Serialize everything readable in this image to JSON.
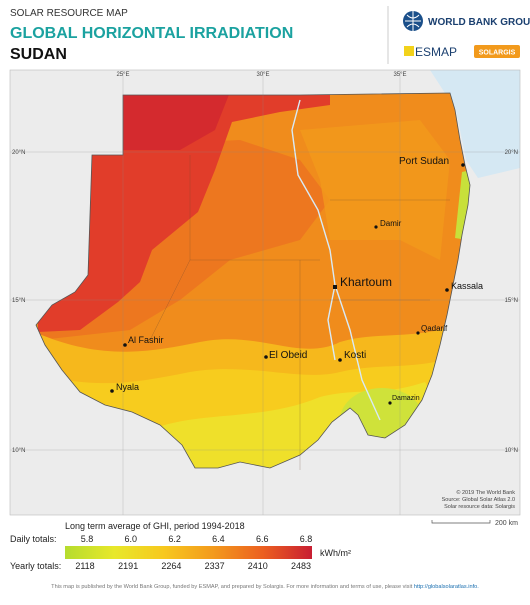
{
  "header": {
    "subtitle": "SOLAR RESOURCE MAP",
    "title": "GLOBAL HORIZONTAL IRRADIATION",
    "country": "SUDAN"
  },
  "logos": {
    "world_bank": "WORLD BANK GROUP",
    "esmap": "ESMAP",
    "solargis": "SOLARGIS"
  },
  "map": {
    "lon_labels": [
      "25°E",
      "30°E",
      "35°E"
    ],
    "lat_labels": [
      "20°N",
      "15°N",
      "10°N"
    ],
    "cities": [
      "Port Sudan",
      "Damir",
      "Khartoum",
      "Kassala",
      "Al Fashir",
      "Qadarif",
      "El Obeid",
      "Kosti",
      "Nyala",
      "Damazin"
    ],
    "credits": [
      "© 2019 The World Bank",
      "Source: Global Solar Atlas 2.0",
      "Solar resource data: Solargis"
    ],
    "scale": "200 km"
  },
  "legend": {
    "title": "Long term average of GHI, period 1994-2018",
    "daily_label": "Daily totals:",
    "daily": [
      "5.8",
      "6.0",
      "6.2",
      "6.4",
      "6.6",
      "6.8"
    ],
    "unit": "kWh/m²",
    "yearly_label": "Yearly totals:",
    "yearly": [
      "2118",
      "2191",
      "2264",
      "2337",
      "2410",
      "2483"
    ]
  },
  "footer": {
    "text": "This map is published by the World Bank Group, funded by ESMAP, and prepared by Solargis. For more information and terms of use, please visit",
    "link": "http://globalsolaratlas.info."
  }
}
